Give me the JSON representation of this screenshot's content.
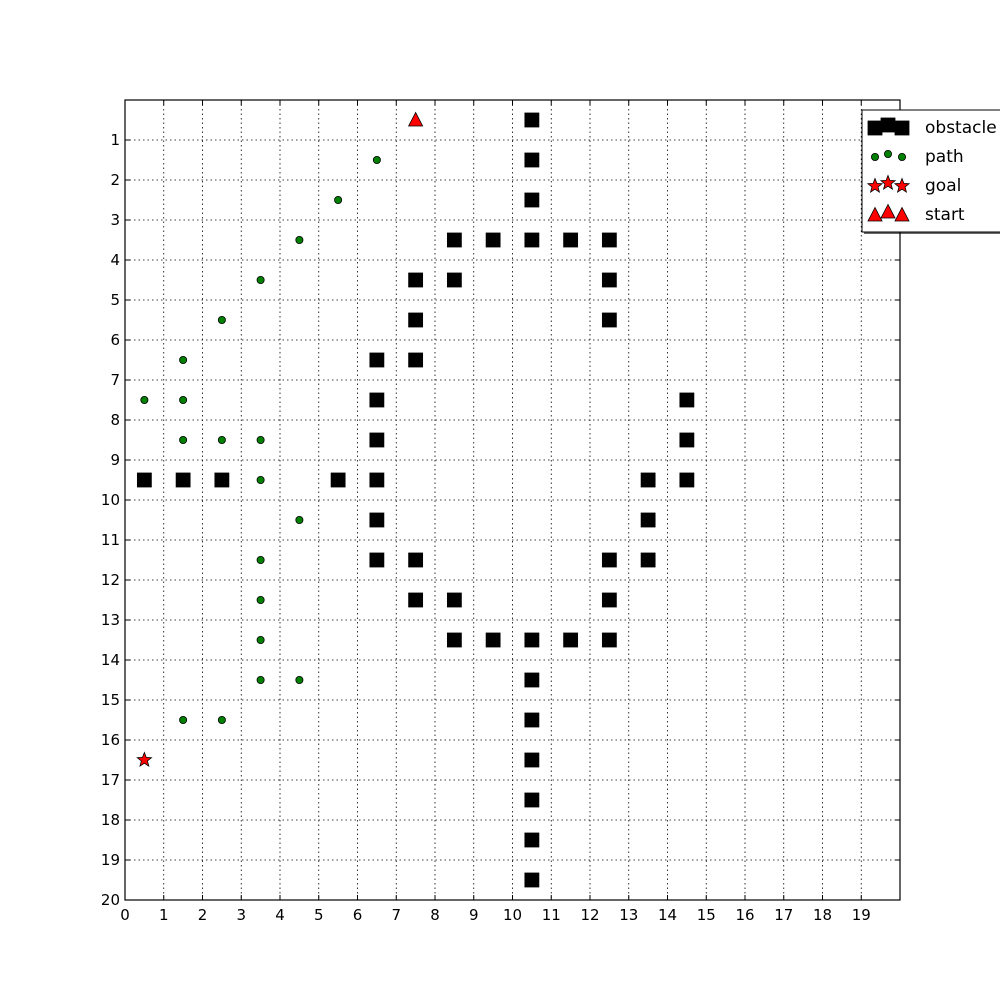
{
  "chart_data": {
    "type": "scatter",
    "title": "",
    "xlabel": "",
    "ylabel": "",
    "xlim": [
      0,
      20
    ],
    "ylim": [
      20,
      0
    ],
    "y_inverted": true,
    "grid": true,
    "grid_style": "dotted",
    "legend_position": "top-right",
    "x_ticks": [
      "0",
      "1",
      "2",
      "3",
      "4",
      "5",
      "6",
      "7",
      "8",
      "9",
      "10",
      "11",
      "12",
      "13",
      "14",
      "15",
      "16",
      "17",
      "18",
      "19"
    ],
    "y_ticks": [
      "1",
      "2",
      "3",
      "4",
      "5",
      "6",
      "7",
      "8",
      "9",
      "10",
      "11",
      "12",
      "13",
      "14",
      "15",
      "16",
      "17",
      "18",
      "19",
      "20"
    ],
    "series": [
      {
        "name": "obstacle",
        "marker": "square",
        "color": "#000000",
        "points": [
          [
            10.5,
            0.5
          ],
          [
            10.5,
            1.5
          ],
          [
            10.5,
            2.5
          ],
          [
            8.5,
            3.5
          ],
          [
            9.5,
            3.5
          ],
          [
            10.5,
            3.5
          ],
          [
            11.5,
            3.5
          ],
          [
            12.5,
            3.5
          ],
          [
            7.5,
            4.5
          ],
          [
            8.5,
            4.5
          ],
          [
            12.5,
            4.5
          ],
          [
            7.5,
            5.5
          ],
          [
            12.5,
            5.5
          ],
          [
            6.5,
            6.5
          ],
          [
            7.5,
            6.5
          ],
          [
            6.5,
            7.5
          ],
          [
            14.5,
            7.5
          ],
          [
            6.5,
            8.5
          ],
          [
            14.5,
            8.5
          ],
          [
            0.5,
            9.5
          ],
          [
            1.5,
            9.5
          ],
          [
            2.5,
            9.5
          ],
          [
            5.5,
            9.5
          ],
          [
            6.5,
            9.5
          ],
          [
            13.5,
            9.5
          ],
          [
            14.5,
            9.5
          ],
          [
            6.5,
            10.5
          ],
          [
            13.5,
            10.5
          ],
          [
            6.5,
            11.5
          ],
          [
            7.5,
            11.5
          ],
          [
            12.5,
            11.5
          ],
          [
            13.5,
            11.5
          ],
          [
            7.5,
            12.5
          ],
          [
            8.5,
            12.5
          ],
          [
            12.5,
            12.5
          ],
          [
            8.5,
            13.5
          ],
          [
            9.5,
            13.5
          ],
          [
            10.5,
            13.5
          ],
          [
            11.5,
            13.5
          ],
          [
            12.5,
            13.5
          ],
          [
            10.5,
            14.5
          ],
          [
            10.5,
            15.5
          ],
          [
            10.5,
            16.5
          ],
          [
            10.5,
            17.5
          ],
          [
            10.5,
            18.5
          ],
          [
            10.5,
            19.5
          ]
        ]
      },
      {
        "name": "path",
        "marker": "circle",
        "color": "#008000",
        "points": [
          [
            6.5,
            1.5
          ],
          [
            5.5,
            2.5
          ],
          [
            4.5,
            3.5
          ],
          [
            3.5,
            4.5
          ],
          [
            2.5,
            5.5
          ],
          [
            1.5,
            6.5
          ],
          [
            0.5,
            7.5
          ],
          [
            1.5,
            7.5
          ],
          [
            1.5,
            8.5
          ],
          [
            2.5,
            8.5
          ],
          [
            3.5,
            8.5
          ],
          [
            3.5,
            9.5
          ],
          [
            4.5,
            10.5
          ],
          [
            3.5,
            11.5
          ],
          [
            3.5,
            12.5
          ],
          [
            3.5,
            13.5
          ],
          [
            3.5,
            14.5
          ],
          [
            4.5,
            14.5
          ],
          [
            1.5,
            15.5
          ],
          [
            2.5,
            15.5
          ]
        ]
      },
      {
        "name": "goal",
        "marker": "star",
        "color": "#ff0000",
        "points": [
          [
            0.5,
            16.5
          ]
        ]
      },
      {
        "name": "start",
        "marker": "triangle",
        "color": "#ff0000",
        "points": [
          [
            7.5,
            0.5
          ]
        ]
      }
    ]
  }
}
